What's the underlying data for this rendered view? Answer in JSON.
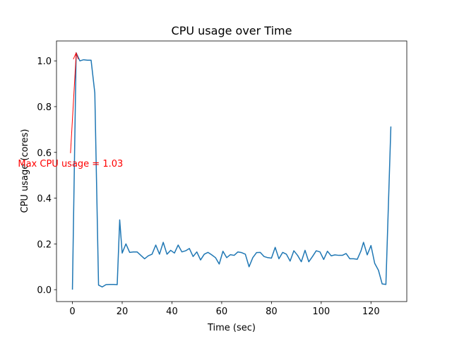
{
  "chart_data": {
    "type": "line",
    "title": "CPU usage over Time",
    "xlabel": "Time (sec)",
    "ylabel": "CPU usage (cores)",
    "color": "#1f77b4",
    "x": [
      0,
      1.5,
      3,
      4.5,
      6,
      7.5,
      9,
      10.5,
      12,
      13.5,
      15,
      16.5,
      18,
      19,
      20,
      21.5,
      23,
      24.5,
      26,
      27.5,
      29,
      30.5,
      32,
      33.5,
      35,
      36.5,
      38,
      39.5,
      41,
      42.5,
      44,
      45.5,
      47,
      48.5,
      50,
      51.5,
      53,
      54.5,
      56,
      57.5,
      59,
      60.5,
      62,
      63.5,
      65,
      66.5,
      68,
      69.5,
      71,
      72.5,
      74,
      75.5,
      77,
      78.5,
      80,
      81.5,
      83,
      84.5,
      86,
      87.5,
      89,
      90.5,
      92,
      93.5,
      95,
      96.5,
      98,
      99.5,
      101,
      102.5,
      104,
      105.5,
      107,
      108.5,
      110,
      111.5,
      113,
      114.5,
      116,
      117,
      118.5,
      120,
      121.5,
      123,
      124.5,
      126,
      128
    ],
    "values": [
      0,
      1.035,
      1.0,
      1.005,
      1.003,
      1.003,
      0.86,
      0.02,
      0.012,
      0.022,
      0.023,
      0.023,
      0.022,
      0.305,
      0.16,
      0.2,
      0.163,
      0.165,
      0.165,
      0.15,
      0.135,
      0.148,
      0.155,
      0.195,
      0.155,
      0.207,
      0.155,
      0.172,
      0.16,
      0.195,
      0.165,
      0.17,
      0.18,
      0.145,
      0.165,
      0.13,
      0.155,
      0.163,
      0.152,
      0.14,
      0.112,
      0.168,
      0.14,
      0.153,
      0.15,
      0.165,
      0.162,
      0.155,
      0.1,
      0.14,
      0.162,
      0.163,
      0.145,
      0.14,
      0.138,
      0.185,
      0.135,
      0.163,
      0.155,
      0.125,
      0.17,
      0.15,
      0.122,
      0.172,
      0.122,
      0.145,
      0.17,
      0.165,
      0.132,
      0.168,
      0.148,
      0.152,
      0.15,
      0.15,
      0.158,
      0.135,
      0.135,
      0.133,
      0.17,
      0.207,
      0.152,
      0.193,
      0.115,
      0.085,
      0.025,
      0.023,
      0.713
    ],
    "xlim": [
      -6.4,
      134.4
    ],
    "ylim": [
      -0.052,
      1.087
    ],
    "xticks": [
      0,
      20,
      40,
      60,
      80,
      100,
      120
    ],
    "yticks": [
      {
        "value": 0,
        "label": "0.0"
      },
      {
        "value": 0.2,
        "label": "0.2"
      },
      {
        "value": 0.4,
        "label": "0.4"
      },
      {
        "value": 0.6,
        "label": "0.6"
      },
      {
        "value": 0.8,
        "label": "0.8"
      },
      {
        "value": 1,
        "label": "1.0"
      }
    ],
    "annotation": {
      "text": "Max CPU usage = 1.03",
      "x": 1.5,
      "y": 1.035,
      "color": "#ff0000"
    }
  }
}
